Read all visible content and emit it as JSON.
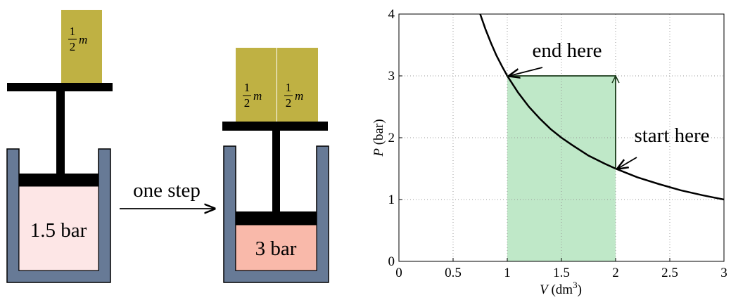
{
  "diagram": {
    "before": {
      "weights": [
        {
          "numerator": "1",
          "denominator": "2",
          "variable": "m"
        }
      ],
      "pressure": "1.5 bar"
    },
    "step": "one step",
    "after": {
      "weights": [
        {
          "numerator": "1",
          "denominator": "2",
          "variable": "m"
        },
        {
          "numerator": "1",
          "denominator": "2",
          "variable": "m"
        }
      ],
      "pressure": "3 bar"
    }
  },
  "chart_data": {
    "type": "line",
    "xlabel": [
      "V",
      "(dm",
      "3",
      ")"
    ],
    "ylabel": [
      "P",
      "(bar)"
    ],
    "xlim": [
      0,
      3
    ],
    "ylim": [
      0,
      4
    ],
    "xticks": [
      0,
      0.5,
      1,
      1.5,
      2,
      2.5,
      3
    ],
    "yticks": [
      0,
      1,
      2,
      3,
      4
    ],
    "grid": true,
    "curve": {
      "color": "#000000",
      "x": [
        0.75,
        0.8,
        0.85,
        0.9,
        0.95,
        1,
        1.1,
        1.2,
        1.3,
        1.4,
        1.5,
        1.6,
        1.75,
        1.9,
        2,
        2.2,
        2.4,
        2.6,
        2.8,
        3
      ],
      "values": [
        4,
        3.75,
        3.53,
        3.33,
        3.16,
        3,
        2.73,
        2.5,
        2.31,
        2.14,
        2,
        1.88,
        1.71,
        1.58,
        1.5,
        1.36,
        1.25,
        1.15,
        1.07,
        1
      ]
    },
    "process": {
      "color": "#1a3a1a",
      "x": [
        2,
        2,
        1
      ],
      "values": [
        1.5,
        3,
        3
      ]
    },
    "shaded": {
      "color": "#bfe8c8",
      "x": [
        1,
        2
      ],
      "top": 3
    },
    "annotations": [
      {
        "text": "end here",
        "x": 1,
        "y": 3
      },
      {
        "text": "start here",
        "x": 2,
        "y": 1.5
      }
    ]
  }
}
